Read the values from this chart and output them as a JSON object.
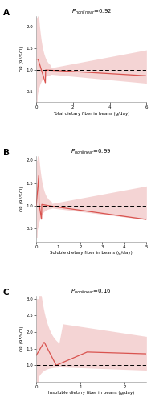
{
  "panel_A": {
    "label": "A",
    "title_italic": "P",
    "title_sub": "nonlinear",
    "title_val": "=0.92",
    "xlabel": "Total dietary fiber in beans (g/day)",
    "ylabel": "OR (95%CI)",
    "xlim": [
      0,
      6
    ],
    "ylim": [
      0.25,
      2.25
    ],
    "yticks": [
      0.5,
      1.0,
      1.5,
      2.0
    ],
    "xticks": [
      0,
      2,
      4,
      6
    ],
    "ref_line": 1.0,
    "curve_color": "#d9534f",
    "shade_color": "#e8a0a0",
    "shade_alpha": 0.45
  },
  "panel_B": {
    "label": "B",
    "title_italic": "P",
    "title_sub": "nonlinear",
    "title_val": "=0.99",
    "xlabel": "Soluble dietary fiber in beans (g/day)",
    "ylabel": "OR (95%CI)",
    "xlim": [
      0,
      5
    ],
    "ylim": [
      0.2,
      2.1
    ],
    "yticks": [
      0.5,
      1.0,
      1.5,
      2.0
    ],
    "xticks": [
      0,
      1,
      2,
      3,
      4,
      5
    ],
    "ref_line": 1.0,
    "curve_color": "#d9534f",
    "shade_color": "#e8a0a0",
    "shade_alpha": 0.45
  },
  "panel_C": {
    "label": "C",
    "title_italic": "P",
    "title_sub": "nonlinear",
    "title_val": "=0.16",
    "xlabel": "Insoluble dietary fiber in beans (g/day)",
    "ylabel": "OR (95%CI)",
    "xlim": [
      0,
      2.5
    ],
    "ylim": [
      0.5,
      3.1
    ],
    "yticks": [
      1.0,
      1.5,
      2.0,
      2.5,
      3.0
    ],
    "xticks": [
      0,
      1,
      2
    ],
    "ref_line": 1.0,
    "curve_color": "#d9534f",
    "shade_color": "#e8a0a0",
    "shade_alpha": 0.45
  }
}
